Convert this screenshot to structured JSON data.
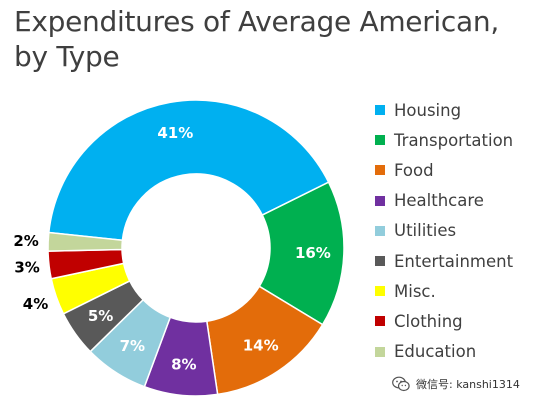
{
  "chart_data": {
    "type": "pie",
    "title": "Expenditures of Average American,\nby Type",
    "donut": true,
    "legend_position": "right",
    "categories": [
      "Housing",
      "Transportation",
      "Food",
      "Healthcare",
      "Utilities",
      "Entertainment",
      "Misc.",
      "Clothing",
      "Education"
    ],
    "values": [
      41,
      16,
      14,
      8,
      7,
      5,
      4,
      3,
      2
    ],
    "labels": [
      "41%",
      "16%",
      "14%",
      "8%",
      "7%",
      "5%",
      "4%",
      "3%",
      "2%"
    ],
    "colors": [
      "#00b0f0",
      "#00b050",
      "#e36c0a",
      "#7030a0",
      "#92cddc",
      "#595959",
      "#ffff00",
      "#c00000",
      "#c3d69b"
    ],
    "label_colors": [
      "#ffffff",
      "#ffffff",
      "#ffffff",
      "#ffffff",
      "#ffffff",
      "#ffffff",
      "#000000",
      "#000000",
      "#000000"
    ]
  },
  "watermark": {
    "text": "微信号: kanshi1314",
    "icon": "wechat-icon"
  }
}
